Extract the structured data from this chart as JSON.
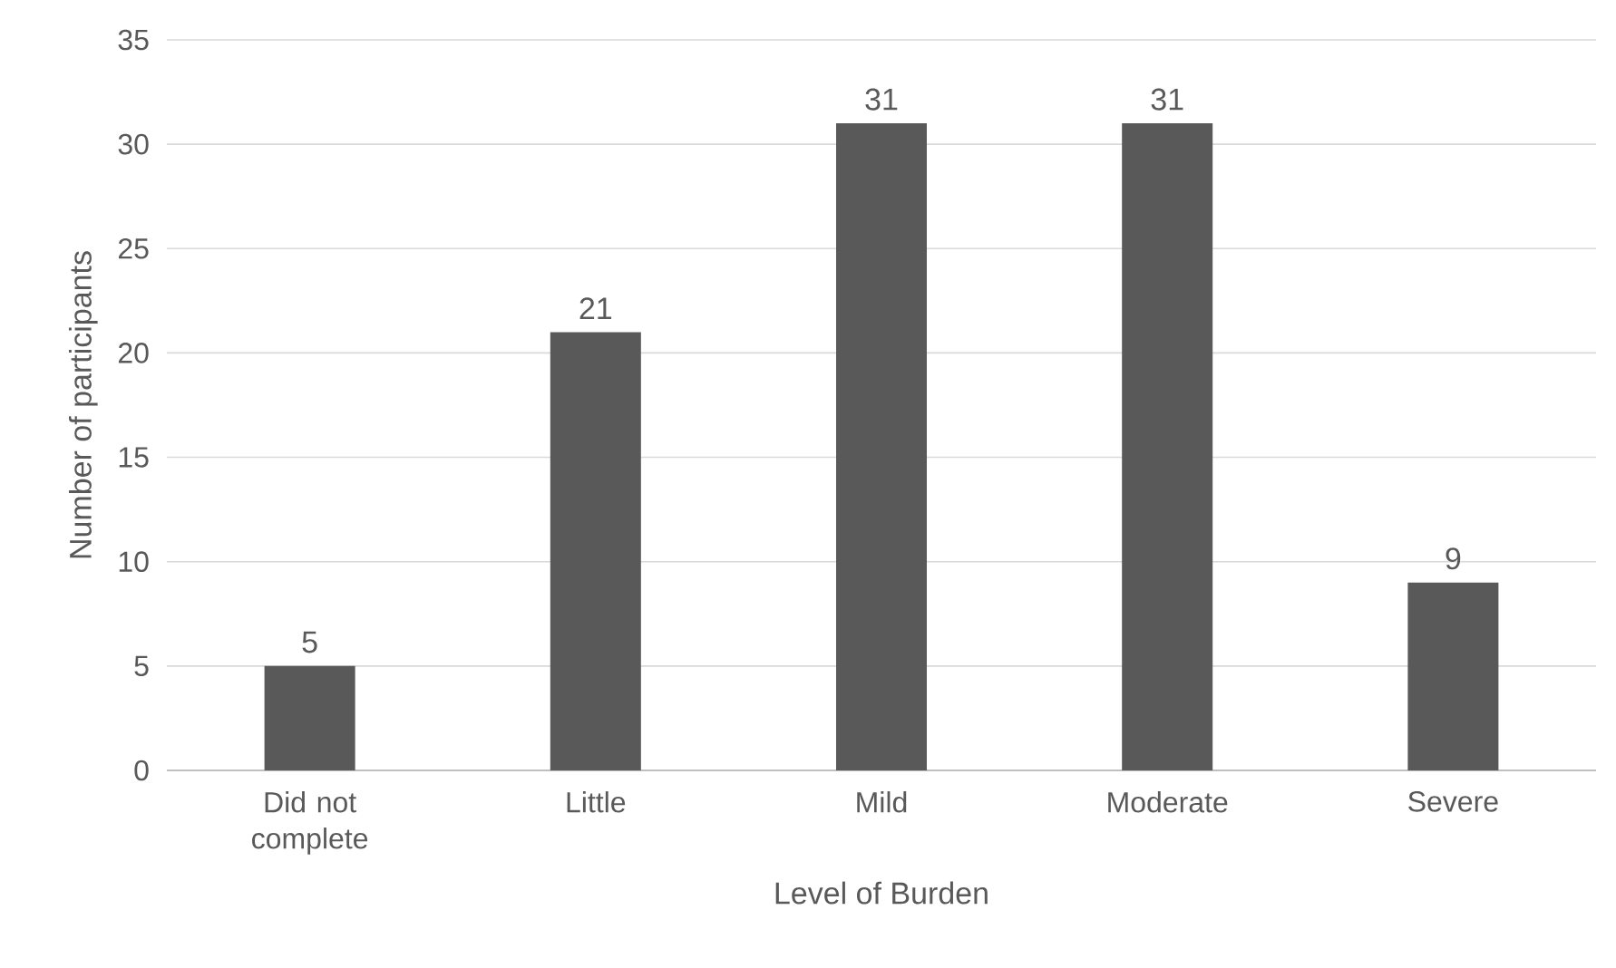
{
  "chart_data": {
    "type": "bar",
    "xlabel": "Level of Burden",
    "ylabel": "Number of participants",
    "categories": [
      "Did not complete",
      "Little",
      "Mild",
      "Moderate",
      "Severe"
    ],
    "values": [
      5,
      21,
      31,
      31,
      9
    ],
    "color": "#595959",
    "ylim": [
      0,
      35
    ],
    "yticks": [
      0,
      5,
      10,
      15,
      20,
      25,
      30,
      35
    ],
    "grid": "y",
    "data_labels": true
  }
}
